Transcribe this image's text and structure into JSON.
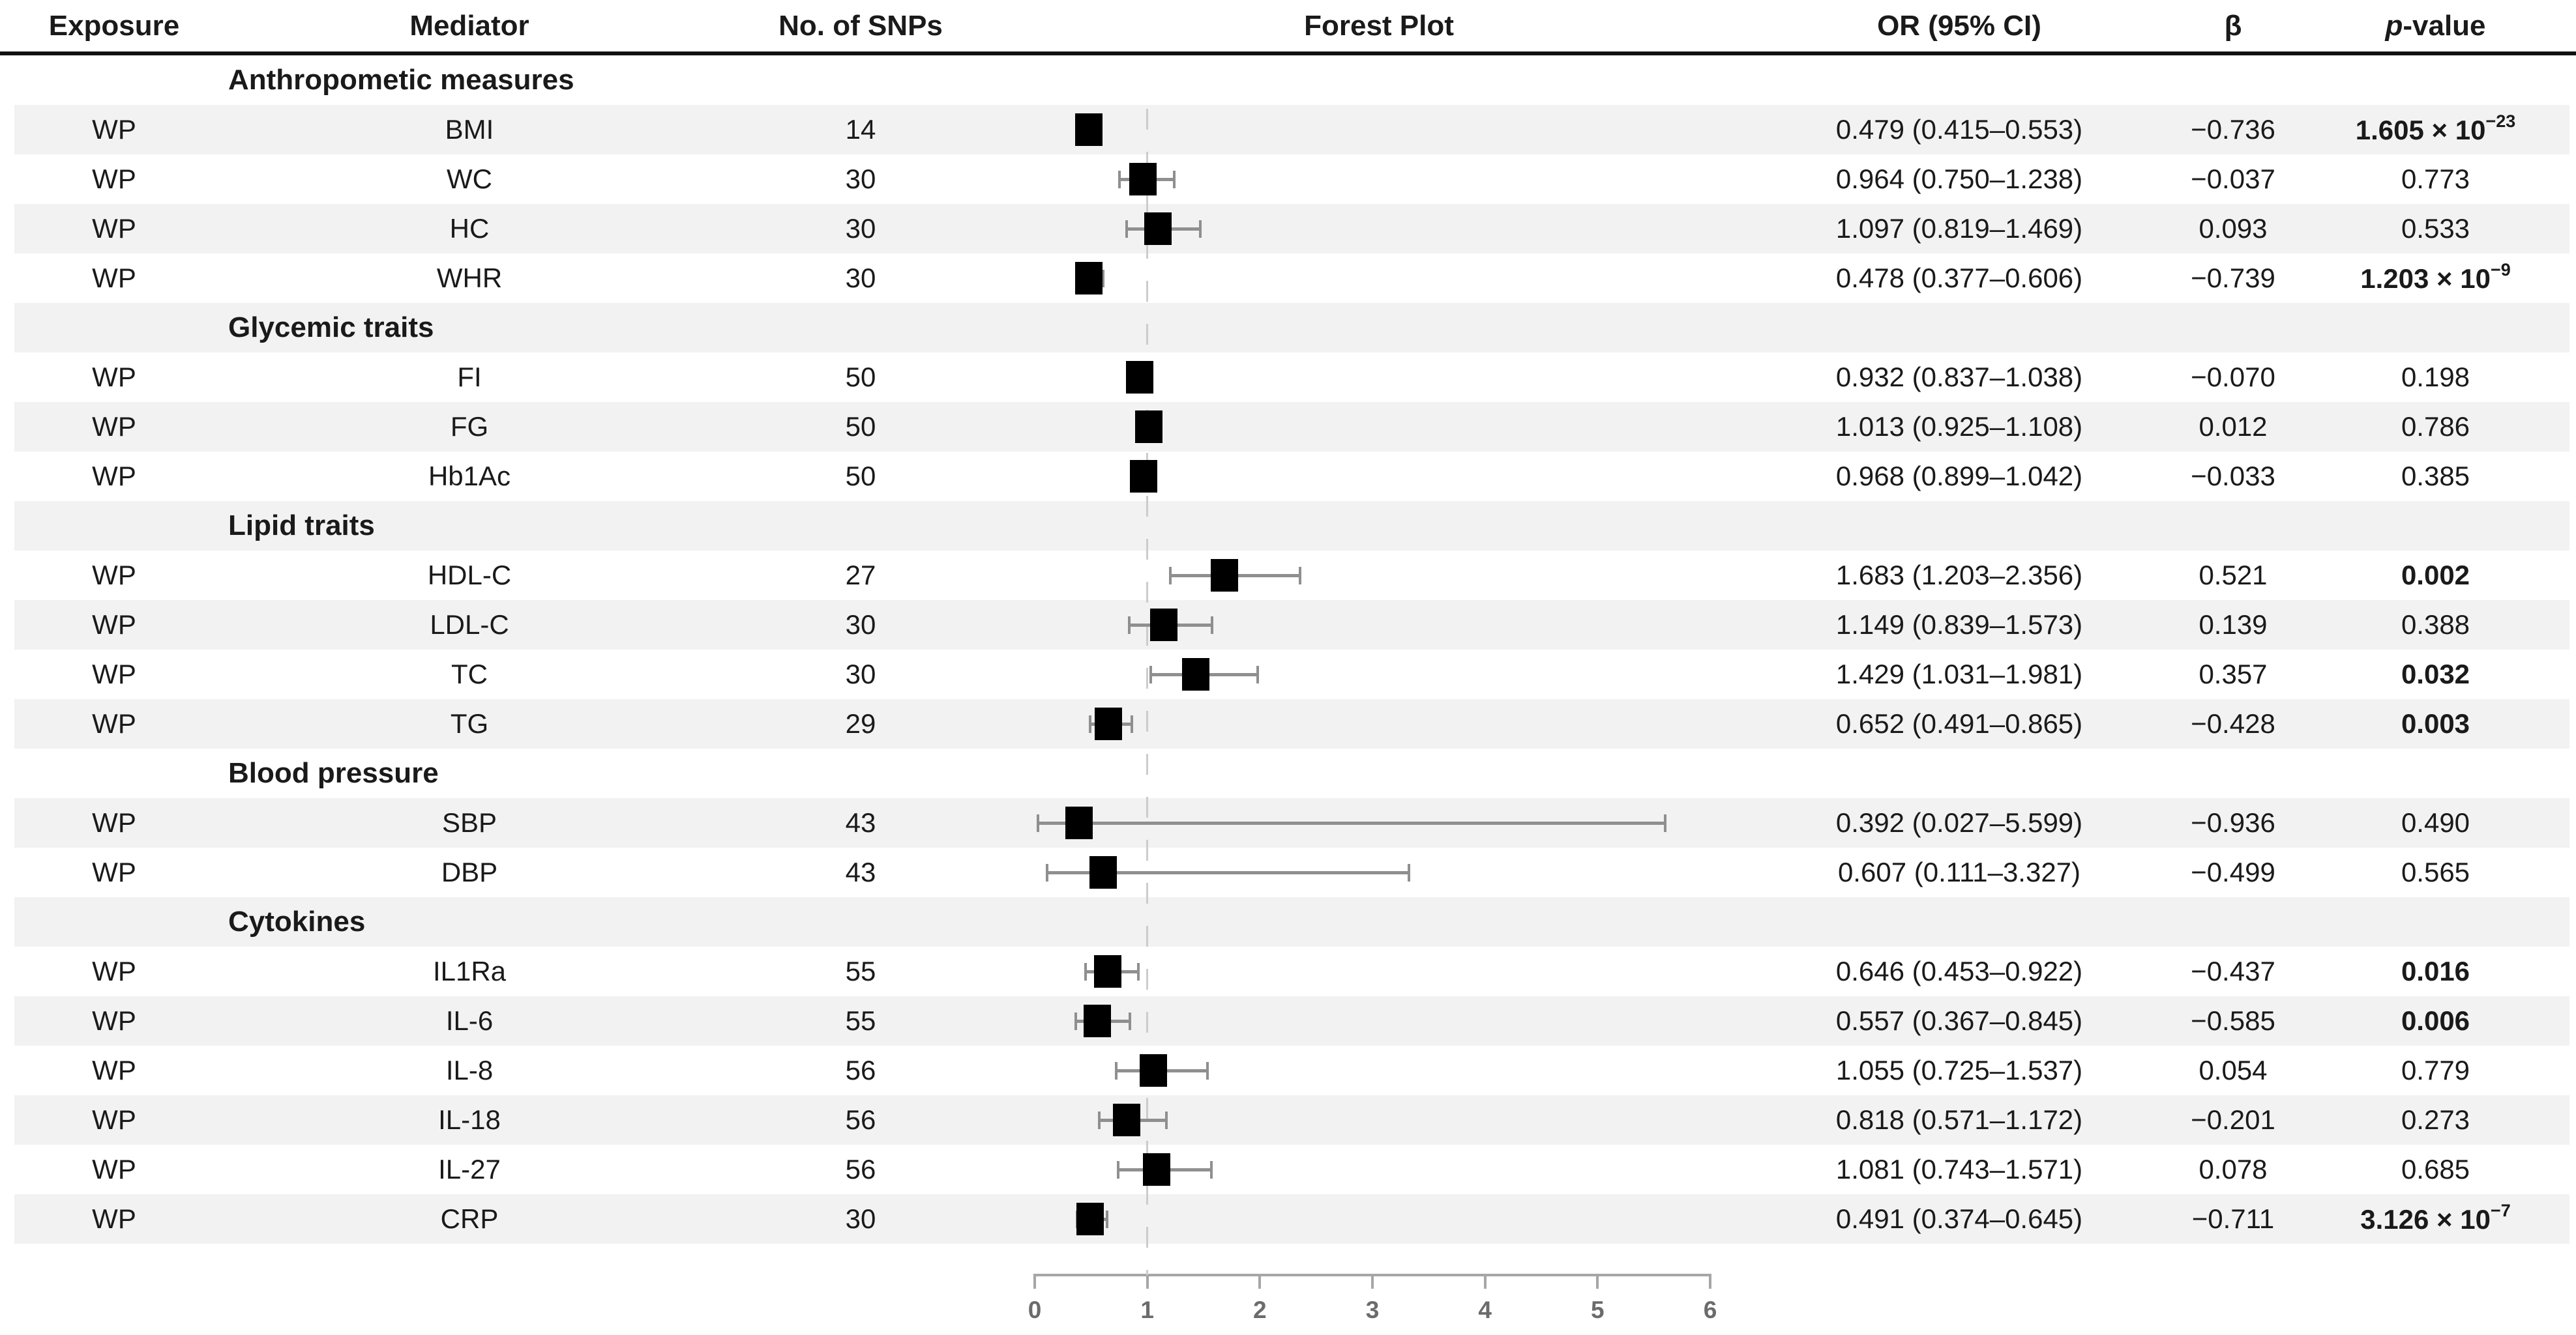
{
  "colors": {
    "text": "#1a1a1a",
    "zebra_stripe": "#f2f2f2",
    "marker_box": "#000000",
    "ci_whisker": "#8f8f8f",
    "reference_line": "#cccccc",
    "axis": "#a6a6a6",
    "tick_label": "#6b6b6b",
    "header_rule": "#111111"
  },
  "table": {
    "columns": [
      "Exposure",
      "Mediator",
      "No. of SNPs",
      "Forest Plot",
      "OR (95% CI)",
      "β",
      "p-value"
    ],
    "p_header_italic": "p",
    "p_header_rest": "-value",
    "rows": [
      {
        "type": "group",
        "label": "Anthropometic measures"
      },
      {
        "type": "data",
        "exposure": "WP",
        "mediator": "BMI",
        "snps": "14",
        "or_ci": "0.479 (0.415–0.553)",
        "beta": "−0.736",
        "p": "1.605 × 10",
        "p_exp": "−23",
        "p_bold": true
      },
      {
        "type": "data",
        "exposure": "WP",
        "mediator": "WC",
        "snps": "30",
        "or_ci": "0.964 (0.750–1.238)",
        "beta": "−0.037",
        "p": "0.773",
        "p_exp": null,
        "p_bold": false
      },
      {
        "type": "data",
        "exposure": "WP",
        "mediator": "HC",
        "snps": "30",
        "or_ci": "1.097 (0.819–1.469)",
        "beta": "0.093",
        "p": "0.533",
        "p_exp": null,
        "p_bold": false
      },
      {
        "type": "data",
        "exposure": "WP",
        "mediator": "WHR",
        "snps": "30",
        "or_ci": "0.478 (0.377–0.606)",
        "beta": "−0.739",
        "p": "1.203 × 10",
        "p_exp": "−9",
        "p_bold": true
      },
      {
        "type": "group",
        "label": "Glycemic traits"
      },
      {
        "type": "data",
        "exposure": "WP",
        "mediator": "FI",
        "snps": "50",
        "or_ci": "0.932 (0.837–1.038)",
        "beta": "−0.070",
        "p": "0.198",
        "p_exp": null,
        "p_bold": false
      },
      {
        "type": "data",
        "exposure": "WP",
        "mediator": "FG",
        "snps": "50",
        "or_ci": "1.013 (0.925–1.108)",
        "beta": "0.012",
        "p": "0.786",
        "p_exp": null,
        "p_bold": false
      },
      {
        "type": "data",
        "exposure": "WP",
        "mediator": "Hb1Ac",
        "snps": "50",
        "or_ci": "0.968 (0.899–1.042)",
        "beta": "−0.033",
        "p": "0.385",
        "p_exp": null,
        "p_bold": false
      },
      {
        "type": "group",
        "label": "Lipid traits"
      },
      {
        "type": "data",
        "exposure": "WP",
        "mediator": "HDL-C",
        "snps": "27",
        "or_ci": "1.683 (1.203–2.356)",
        "beta": "0.521",
        "p": "0.002",
        "p_exp": null,
        "p_bold": true
      },
      {
        "type": "data",
        "exposure": "WP",
        "mediator": "LDL-C",
        "snps": "30",
        "or_ci": "1.149 (0.839–1.573)",
        "beta": "0.139",
        "p": "0.388",
        "p_exp": null,
        "p_bold": false
      },
      {
        "type": "data",
        "exposure": "WP",
        "mediator": "TC",
        "snps": "30",
        "or_ci": "1.429 (1.031–1.981)",
        "beta": "0.357",
        "p": "0.032",
        "p_exp": null,
        "p_bold": true
      },
      {
        "type": "data",
        "exposure": "WP",
        "mediator": "TG",
        "snps": "29",
        "or_ci": "0.652 (0.491–0.865)",
        "beta": "−0.428",
        "p": "0.003",
        "p_exp": null,
        "p_bold": true
      },
      {
        "type": "group",
        "label": "Blood pressure"
      },
      {
        "type": "data",
        "exposure": "WP",
        "mediator": "SBP",
        "snps": "43",
        "or_ci": "0.392 (0.027–5.599)",
        "beta": "−0.936",
        "p": "0.490",
        "p_exp": null,
        "p_bold": false
      },
      {
        "type": "data",
        "exposure": "WP",
        "mediator": "DBP",
        "snps": "43",
        "or_ci": "0.607 (0.111–3.327)",
        "beta": "−0.499",
        "p": "0.565",
        "p_exp": null,
        "p_bold": false
      },
      {
        "type": "group",
        "label": "Cytokines"
      },
      {
        "type": "data",
        "exposure": "WP",
        "mediator": "IL1Ra",
        "snps": "55",
        "or_ci": "0.646 (0.453–0.922)",
        "beta": "−0.437",
        "p": "0.016",
        "p_exp": null,
        "p_bold": true
      },
      {
        "type": "data",
        "exposure": "WP",
        "mediator": "IL-6",
        "snps": "55",
        "or_ci": "0.557 (0.367–0.845)",
        "beta": "−0.585",
        "p": "0.006",
        "p_exp": null,
        "p_bold": true
      },
      {
        "type": "data",
        "exposure": "WP",
        "mediator": "IL-8",
        "snps": "56",
        "or_ci": "1.055 (0.725–1.537)",
        "beta": "0.054",
        "p": "0.779",
        "p_exp": null,
        "p_bold": false
      },
      {
        "type": "data",
        "exposure": "WP",
        "mediator": "IL-18",
        "snps": "56",
        "or_ci": "0.818 (0.571–1.172)",
        "beta": "−0.201",
        "p": "0.273",
        "p_exp": null,
        "p_bold": false
      },
      {
        "type": "data",
        "exposure": "WP",
        "mediator": "IL-27",
        "snps": "56",
        "or_ci": "1.081 (0.743–1.571)",
        "beta": "0.078",
        "p": "0.685",
        "p_exp": null,
        "p_bold": false
      },
      {
        "type": "data",
        "exposure": "WP",
        "mediator": "CRP",
        "snps": "30",
        "or_ci": "0.491 (0.374–0.645)",
        "beta": "−0.711",
        "p": "3.126 × 10",
        "p_exp": "−7",
        "p_bold": true
      }
    ]
  },
  "chart_data": {
    "type": "scatter",
    "variant": "forest-plot",
    "title": "Forest Plot",
    "xlabel": "",
    "xlim": [
      0,
      6
    ],
    "x_ticks": [
      0,
      1,
      2,
      3,
      4,
      5,
      6
    ],
    "reference_line_x": 1,
    "grid": false,
    "legend": "none",
    "points": [
      {
        "label": "BMI",
        "or": 0.479,
        "ci_low": 0.415,
        "ci_high": 0.553
      },
      {
        "label": "WC",
        "or": 0.964,
        "ci_low": 0.75,
        "ci_high": 1.238
      },
      {
        "label": "HC",
        "or": 1.097,
        "ci_low": 0.819,
        "ci_high": 1.469
      },
      {
        "label": "WHR",
        "or": 0.478,
        "ci_low": 0.377,
        "ci_high": 0.606
      },
      {
        "label": "FI",
        "or": 0.932,
        "ci_low": 0.837,
        "ci_high": 1.038
      },
      {
        "label": "FG",
        "or": 1.013,
        "ci_low": 0.925,
        "ci_high": 1.108
      },
      {
        "label": "Hb1Ac",
        "or": 0.968,
        "ci_low": 0.899,
        "ci_high": 1.042
      },
      {
        "label": "HDL-C",
        "or": 1.683,
        "ci_low": 1.203,
        "ci_high": 2.356
      },
      {
        "label": "LDL-C",
        "or": 1.149,
        "ci_low": 0.839,
        "ci_high": 1.573
      },
      {
        "label": "TC",
        "or": 1.429,
        "ci_low": 1.031,
        "ci_high": 1.981
      },
      {
        "label": "TG",
        "or": 0.652,
        "ci_low": 0.491,
        "ci_high": 0.865
      },
      {
        "label": "SBP",
        "or": 0.392,
        "ci_low": 0.027,
        "ci_high": 5.599
      },
      {
        "label": "DBP",
        "or": 0.607,
        "ci_low": 0.111,
        "ci_high": 3.327
      },
      {
        "label": "IL1Ra",
        "or": 0.646,
        "ci_low": 0.453,
        "ci_high": 0.922
      },
      {
        "label": "IL-6",
        "or": 0.557,
        "ci_low": 0.367,
        "ci_high": 0.845
      },
      {
        "label": "IL-8",
        "or": 1.055,
        "ci_low": 0.725,
        "ci_high": 1.537
      },
      {
        "label": "IL-18",
        "or": 0.818,
        "ci_low": 0.571,
        "ci_high": 1.172
      },
      {
        "label": "IL-27",
        "or": 1.081,
        "ci_low": 0.743,
        "ci_high": 1.571
      },
      {
        "label": "CRP",
        "or": 0.491,
        "ci_low": 0.374,
        "ci_high": 0.645
      }
    ]
  }
}
